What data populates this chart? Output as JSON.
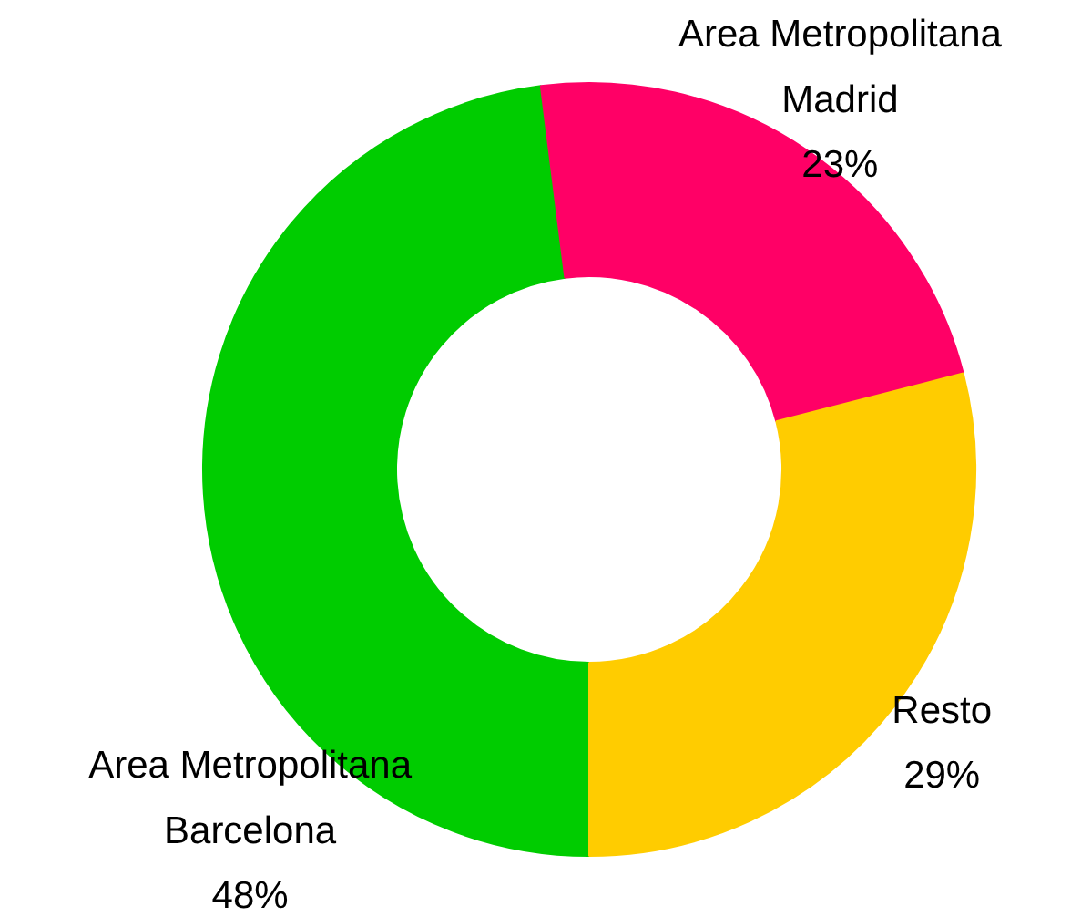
{
  "chart_data": {
    "type": "donut",
    "categories": [
      "Area Metropolitana\nBarcelona",
      "Area Metropolitana\nMadrid",
      "Resto"
    ],
    "values": [
      48,
      23,
      29
    ],
    "colors": [
      "#00cc00",
      "#ff0066",
      "#ffcc00"
    ],
    "value_labels": [
      "48%",
      "23%",
      "29%"
    ]
  }
}
